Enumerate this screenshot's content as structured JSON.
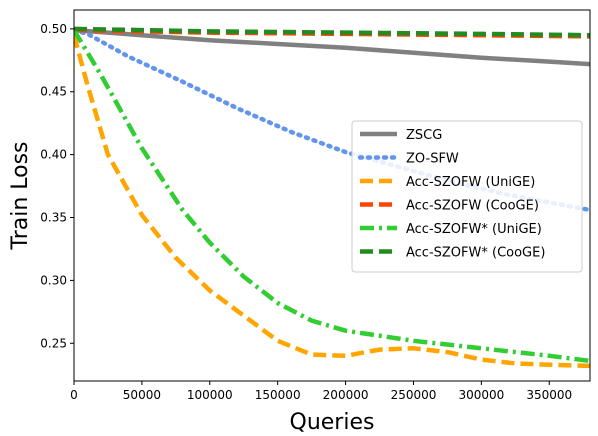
{
  "chart_data": {
    "type": "line",
    "xlabel": "Queries",
    "ylabel": "Train Loss",
    "xlim": [
      0,
      380000
    ],
    "ylim": [
      0.22,
      0.515
    ],
    "xticks": [
      0,
      50000,
      100000,
      150000,
      200000,
      250000,
      300000,
      350000
    ],
    "xtick_labels": [
      "0",
      "50000",
      "100000",
      "150000",
      "200000",
      "250000",
      "300000",
      "350000"
    ],
    "yticks": [
      0.25,
      0.3,
      0.35,
      0.4,
      0.45,
      0.5
    ],
    "ytick_labels": [
      "0.25",
      "0.30",
      "0.35",
      "0.40",
      "0.45",
      "0.50"
    ],
    "grid": false,
    "legend_position": "center-right",
    "series": [
      {
        "name": "ZSCG",
        "color": "#808080",
        "style": "solid",
        "x": [
          0,
          50000,
          100000,
          150000,
          200000,
          250000,
          300000,
          350000,
          380000
        ],
        "y": [
          0.499,
          0.495,
          0.491,
          0.488,
          0.485,
          0.481,
          0.477,
          0.474,
          0.472
        ]
      },
      {
        "name": "ZO-SFW",
        "color": "#6495ED",
        "style": "dotted",
        "x": [
          0,
          10000,
          40000,
          80000,
          120000,
          160000,
          200000,
          240000,
          280000,
          320000,
          360000,
          380000
        ],
        "y": [
          0.499,
          0.496,
          0.478,
          0.458,
          0.437,
          0.418,
          0.402,
          0.39,
          0.378,
          0.368,
          0.36,
          0.356
        ]
      },
      {
        "name": "Acc-SZOFW (UniGE)",
        "color": "#FFA500",
        "style": "dashed",
        "x": [
          0,
          10000,
          25000,
          50000,
          75000,
          100000,
          125000,
          150000,
          175000,
          200000,
          225000,
          250000,
          275000,
          300000,
          325000,
          350000,
          380000
        ],
        "y": [
          0.495,
          0.455,
          0.4,
          0.352,
          0.318,
          0.292,
          0.272,
          0.252,
          0.241,
          0.24,
          0.245,
          0.246,
          0.243,
          0.237,
          0.234,
          0.233,
          0.232
        ]
      },
      {
        "name": "Acc-SZOFW (CooGE)",
        "color": "#FF4500",
        "style": "dashed",
        "x": [
          0,
          50000,
          100000,
          200000,
          300000,
          380000
        ],
        "y": [
          0.499,
          0.498,
          0.497,
          0.496,
          0.495,
          0.494
        ]
      },
      {
        "name": "Acc-SZOFW* (UniGE)",
        "color": "#32CD32",
        "style": "dashdot",
        "x": [
          0,
          20000,
          50000,
          80000,
          100000,
          125000,
          150000,
          175000,
          200000,
          250000,
          300000,
          350000,
          380000
        ],
        "y": [
          0.499,
          0.463,
          0.405,
          0.356,
          0.33,
          0.303,
          0.282,
          0.268,
          0.26,
          0.252,
          0.246,
          0.24,
          0.236
        ]
      },
      {
        "name": "Acc-SZOFW* (CooGE)",
        "color": "#228B22",
        "style": "dashed",
        "x": [
          0,
          50000,
          100000,
          200000,
          300000,
          380000
        ],
        "y": [
          0.5,
          0.499,
          0.498,
          0.497,
          0.496,
          0.495
        ]
      }
    ]
  }
}
